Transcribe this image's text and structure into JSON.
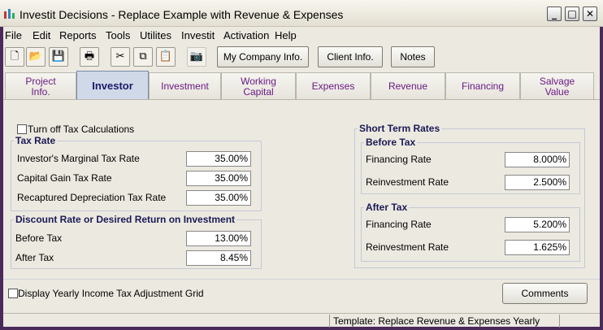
{
  "window": {
    "title": "Investit Decisions  - Replace Example with Revenue & Expenses"
  },
  "menu": [
    "File",
    "Edit",
    "Reports",
    "Tools",
    "Utilites",
    "Investit",
    "Activation",
    "Help"
  ],
  "toolbar": {
    "icons": [
      "new-file-icon",
      "open-folder-icon",
      "save-icon",
      "print-icon",
      "cut-icon",
      "copy-icon",
      "paste-icon",
      "camera-icon"
    ],
    "buttons": {
      "company": "My Company Info.",
      "client": "Client Info.",
      "notes": "Notes"
    }
  },
  "tabs": [
    {
      "label": "Project Info."
    },
    {
      "label": "Investor"
    },
    {
      "label": "Investment"
    },
    {
      "label": "Working Capital"
    },
    {
      "label": "Expenses"
    },
    {
      "label": "Revenue"
    },
    {
      "label": "Financing"
    },
    {
      "label": "Salvage Value"
    }
  ],
  "investor": {
    "turn_off_tax_label": "Turn off Tax Calculations",
    "tax_rate": {
      "title": "Tax Rate",
      "marginal_label": "Investor's Marginal Tax Rate",
      "marginal_value": "35.00%",
      "capital_gain_label": "Capital Gain Tax Rate",
      "capital_gain_value": "35.00%",
      "recaptured_label": "Recaptured Depreciation Tax Rate",
      "recaptured_value": "35.00%"
    },
    "discount": {
      "title": "Discount Rate or Desired Return on Investment",
      "before_label": "Before Tax",
      "before_value": "13.00%",
      "after_label": "After Tax",
      "after_value": "8.45%"
    },
    "short_term": {
      "title": "Short Term Rates",
      "before_title": "Before Tax",
      "before_financing_label": "Financing Rate",
      "before_financing_value": "8.000%",
      "before_reinvest_label": "Reinvestment Rate",
      "before_reinvest_value": "2.500%",
      "after_title": "After Tax",
      "after_financing_label": "Financing Rate",
      "after_financing_value": "5.200%",
      "after_reinvest_label": "Reinvestment Rate",
      "after_reinvest_value": "1.625%"
    },
    "display_grid_label": "Display Yearly Income Tax Adjustment Grid",
    "comments_button": "Comments"
  },
  "status": {
    "template": "Template: Replace Revenue & Expenses Yearly"
  }
}
